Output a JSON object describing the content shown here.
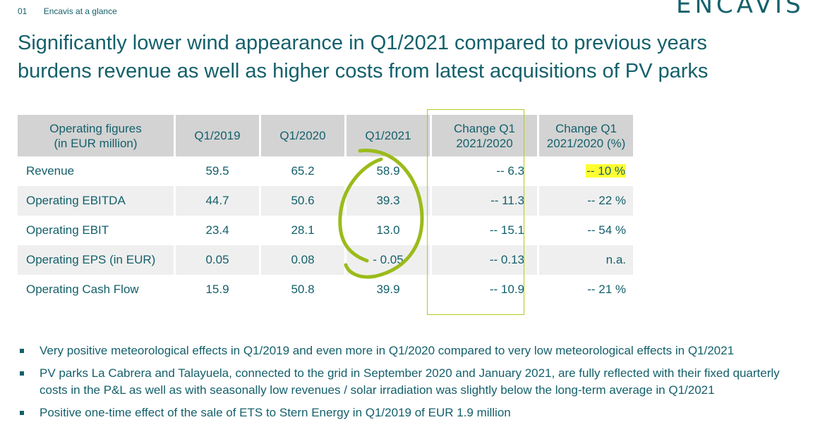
{
  "header": {
    "section_number": "01",
    "section_title": "Encavis at a glance",
    "logo_text": "ENCAVIS"
  },
  "title": {
    "line1": "Significantly lower wind appearance in Q1/2021 compared to previous years",
    "line2": "burdens revenue as well as higher costs from latest acquisitions of PV parks"
  },
  "table": {
    "headers": [
      [
        "Operating figures",
        "(in EUR million)"
      ],
      [
        "Q1/2019"
      ],
      [
        "Q1/2020"
      ],
      [
        "Q1/2021"
      ],
      [
        "Change Q1",
        "2021/2020"
      ],
      [
        "Change Q1",
        "2021/2020 (%)"
      ]
    ],
    "rows": [
      {
        "label": "Revenue",
        "q1_2019": "59.5",
        "q1_2020": "65.2",
        "q1_2021": "58.9",
        "change": "-- 6.3",
        "change_pct": "-- 10 %"
      },
      {
        "label": "Operating EBITDA",
        "q1_2019": "44.7",
        "q1_2020": "50.6",
        "q1_2021": "39.3",
        "change": "-- 11.3",
        "change_pct": "-- 22 %"
      },
      {
        "label": "Operating EBIT",
        "q1_2019": "23.4",
        "q1_2020": "28.1",
        "q1_2021": "13.0",
        "change": "-- 15.1",
        "change_pct": "-- 54 %"
      },
      {
        "label": "Operating EPS (in EUR)",
        "q1_2019": "0.05",
        "q1_2020": "0.08",
        "q1_2021": "- 0.05",
        "change": "-- 0.13",
        "change_pct": "n.a."
      },
      {
        "label": "Operating Cash Flow",
        "q1_2019": "15.9",
        "q1_2020": "50.8",
        "q1_2021": "39.9",
        "change": "-- 10.9",
        "change_pct": "-- 21 %"
      }
    ]
  },
  "bullets": [
    "Very positive meteorological effects in Q1/2019 and even more in Q1/2020 compared to very low meteorological effects in Q1/2021",
    "PV parks La Cabrera and Talayuela, connected to the grid in September 2020 and January 2021, are fully reflected with their fixed quarterly costs in the P&L as well as with seasonally low revenues / solar irradiation was slightly below the long-term average in Q1/2021",
    "Positive one-time effect of the sale of ETS to Stern Energy in Q1/2019 of EUR 1.9 million"
  ],
  "colors": {
    "text": "#14606b",
    "header_bg": "#d3d3d3",
    "row_shade": "#efefef",
    "annotation_green": "#9bbb1a",
    "highlight": "#ffff33"
  }
}
